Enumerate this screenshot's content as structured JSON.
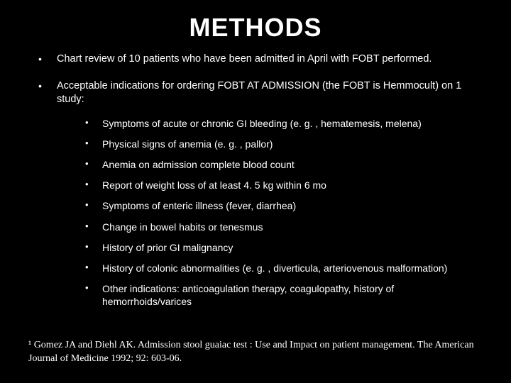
{
  "title": "METHODS",
  "bullets": [
    {
      "text": "Chart review of 10  patients who have been admitted in April  with FOBT performed."
    },
    {
      "text": "Acceptable indications for ordering FOBT AT ADMISSION (the FOBT is Hemmocult) on 1 study:",
      "sub": [
        "Symptoms of acute or chronic GI bleeding (e. g. , hematemesis, melena)",
        "Physical signs of anemia (e. g. , pallor)",
        "Anemia on admission complete blood count",
        "Report of weight loss of at least 4. 5 kg within 6 mo",
        "Symptoms of enteric illness (fever, diarrhea)",
        "Change in bowel habits or tenesmus",
        "History of prior GI malignancy",
        "History of colonic abnormalities (e. g. , diverticula, arteriovenous malformation)",
        "Other indications: anticoagulation therapy, coagulopathy, history of hemorrhoids/varices"
      ]
    }
  ],
  "footnote": "¹ Gomez JA and Diehl AK. Admission stool guaiac test : Use and Impact on patient management. The American Journal of Medicine 1992; 92: 603-06.",
  "colors": {
    "background": "#000000",
    "text": "#ffffff"
  },
  "typography": {
    "title_fontsize_pt": 27,
    "body_fontsize_pt": 11,
    "footnote_fontsize_pt": 11,
    "title_weight": "bold",
    "body_font": "Arial",
    "footnote_font": "Georgia"
  }
}
